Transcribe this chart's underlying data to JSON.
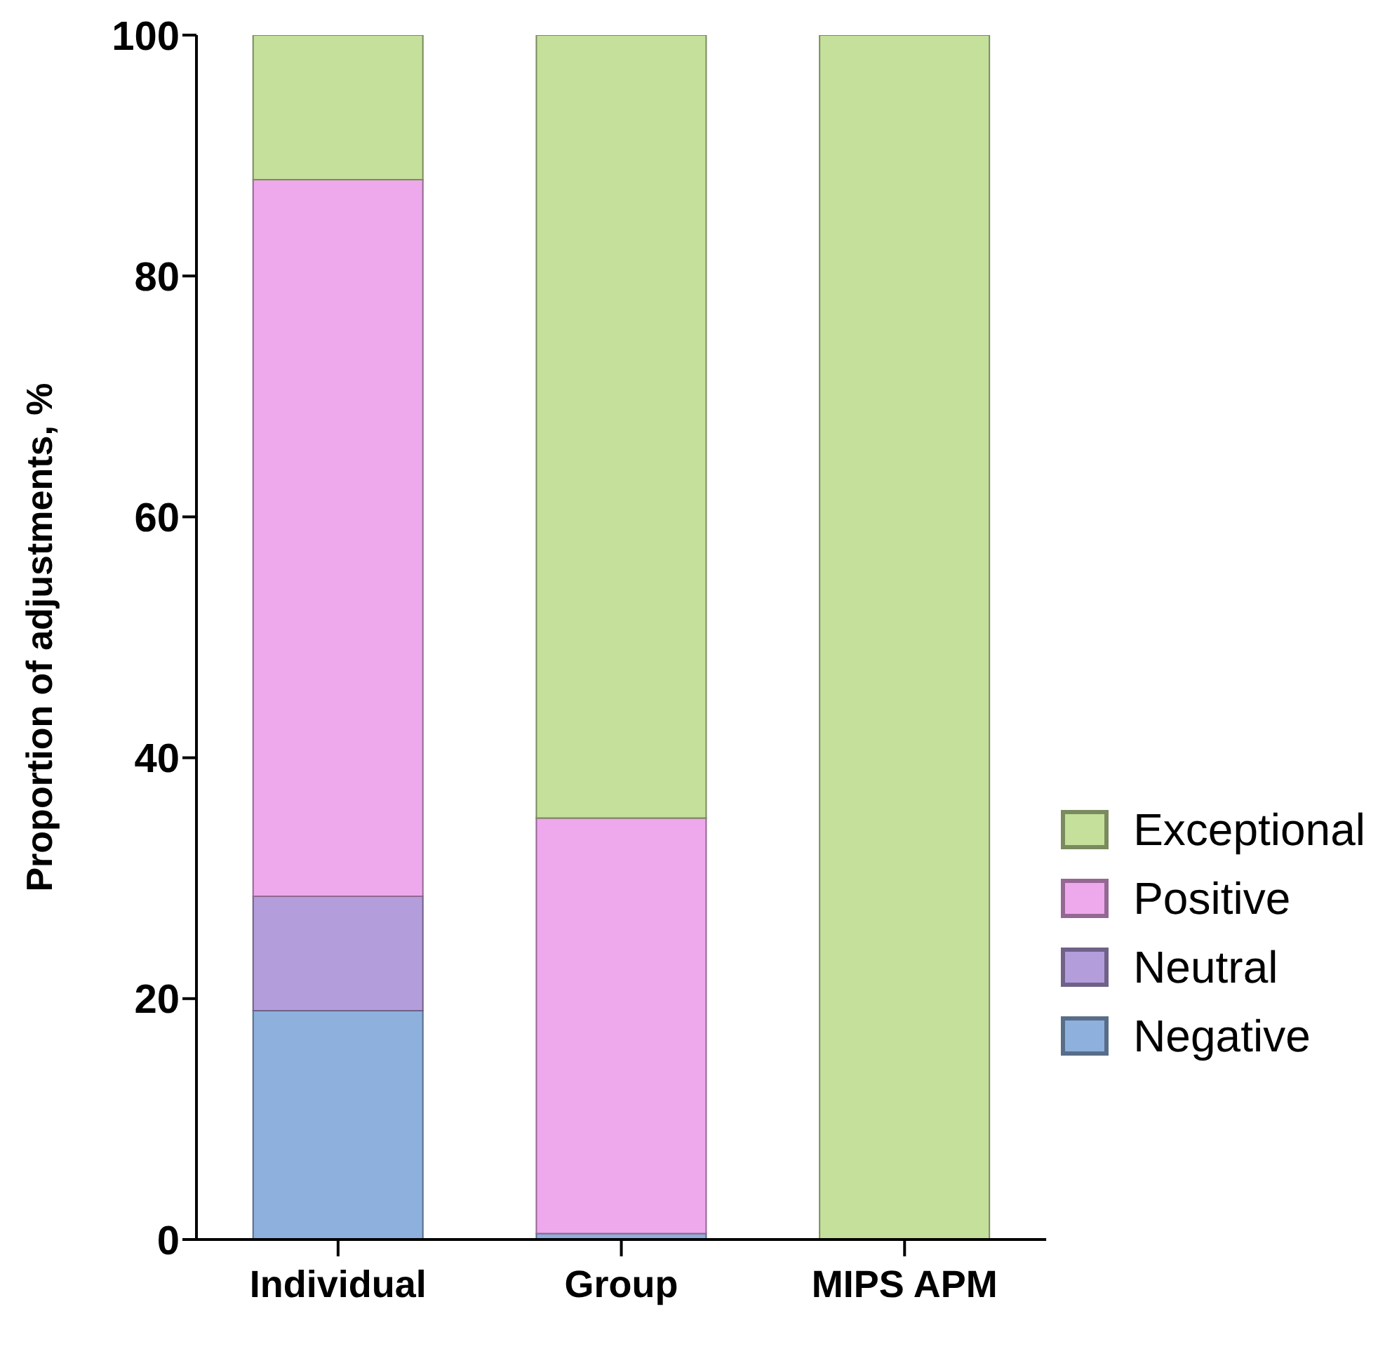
{
  "chart_data": {
    "type": "bar",
    "stacked": true,
    "ylabel": "Proportion of  adjustments, %",
    "categories": [
      "Individual",
      "Group",
      "MIPS APM"
    ],
    "series": [
      {
        "name": "Negative",
        "color": "#8eb0dc",
        "values": [
          19,
          0.5,
          0
        ]
      },
      {
        "name": "Neutral",
        "color": "#b39ddb",
        "values": [
          9.5,
          0,
          0
        ]
      },
      {
        "name": "Positive",
        "color": "#eea8ec",
        "values": [
          59.5,
          34.5,
          0
        ]
      },
      {
        "name": "Exceptional",
        "color": "#c5e09a",
        "values": [
          12,
          65,
          100
        ]
      }
    ],
    "ylim": [
      0,
      100
    ],
    "yticks": [
      0,
      20,
      40,
      60,
      80,
      100
    ],
    "grid": false,
    "legend": "right"
  }
}
